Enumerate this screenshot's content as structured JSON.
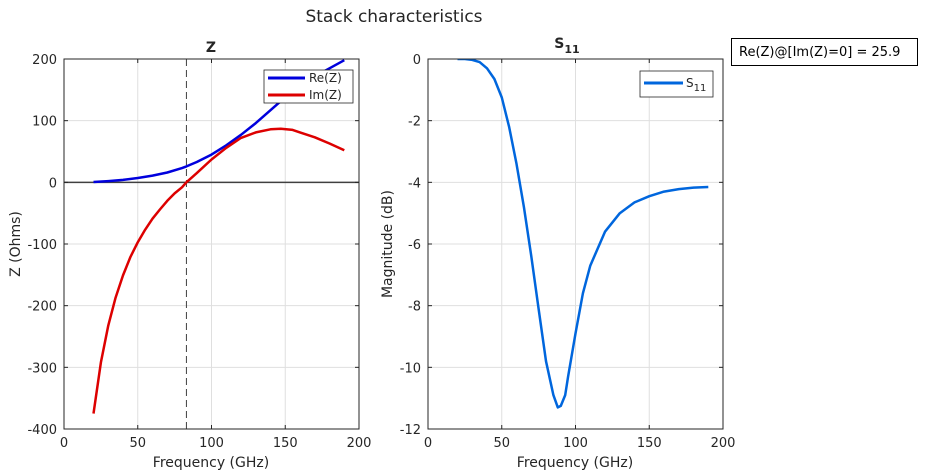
{
  "figure": {
    "suptitle": "Stack characteristics",
    "annotation": "Re(Z)@[Im(Z)=0] = 25.9"
  },
  "chart_data": [
    {
      "type": "line",
      "title": "Z",
      "xlabel": "Frequency (GHz)",
      "ylabel": "Z (Ohms)",
      "xlim": [
        0,
        200
      ],
      "ylim": [
        -400,
        200
      ],
      "xticks": [
        0,
        50,
        100,
        150,
        200
      ],
      "yticks": [
        200,
        100,
        0,
        -100,
        -200,
        -300,
        -400
      ],
      "grid": true,
      "legend_position": "top-right",
      "reference_lines": {
        "horizontal_y": 0,
        "vertical_x": 83
      },
      "series": [
        {
          "name": "Re(Z)",
          "color": "#0000dd",
          "x": [
            20,
            30,
            40,
            50,
            60,
            70,
            80,
            83,
            90,
            100,
            110,
            120,
            130,
            140,
            150,
            160,
            170,
            180,
            190
          ],
          "y": [
            0.5,
            2,
            4,
            7,
            11,
            16,
            23,
            25.9,
            33,
            45,
            60,
            77,
            96,
            117,
            138,
            157,
            172,
            185,
            198
          ]
        },
        {
          "name": "Im(Z)",
          "color": "#dd0000",
          "x": [
            20,
            25,
            30,
            35,
            40,
            45,
            50,
            55,
            60,
            65,
            70,
            75,
            80,
            83,
            90,
            100,
            110,
            120,
            130,
            140,
            147,
            155,
            160,
            170,
            180,
            190
          ],
          "y": [
            -375,
            -292,
            -232,
            -187,
            -151,
            -121,
            -97,
            -77,
            -59,
            -44,
            -30,
            -18,
            -8,
            0,
            15,
            37,
            56,
            72,
            81,
            86,
            87,
            85,
            81,
            73,
            63,
            52
          ]
        }
      ]
    },
    {
      "type": "line",
      "title": "S",
      "title_subscript": "11",
      "xlabel": "Frequency (GHz)",
      "ylabel": "Magnitude (dB)",
      "xlim": [
        0,
        200
      ],
      "ylim": [
        -12,
        0
      ],
      "xticks": [
        0,
        50,
        100,
        150,
        200
      ],
      "yticks": [
        0,
        -2,
        -4,
        -6,
        -8,
        -10,
        -12
      ],
      "grid": true,
      "legend_position": "top-right",
      "series": [
        {
          "name": "S",
          "name_subscript": "11",
          "color": "#0066dd",
          "x": [
            20,
            25,
            30,
            35,
            40,
            45,
            50,
            55,
            60,
            65,
            70,
            75,
            80,
            85,
            88,
            90,
            93,
            95,
            100,
            105,
            110,
            120,
            130,
            140,
            150,
            160,
            170,
            180,
            190
          ],
          "y": [
            0,
            0,
            -0.03,
            -0.1,
            -0.3,
            -0.65,
            -1.25,
            -2.2,
            -3.4,
            -4.8,
            -6.4,
            -8.1,
            -9.8,
            -10.9,
            -11.3,
            -11.25,
            -10.9,
            -10.3,
            -8.9,
            -7.6,
            -6.7,
            -5.6,
            -5.0,
            -4.65,
            -4.45,
            -4.3,
            -4.22,
            -4.17,
            -4.15
          ]
        }
      ]
    }
  ]
}
